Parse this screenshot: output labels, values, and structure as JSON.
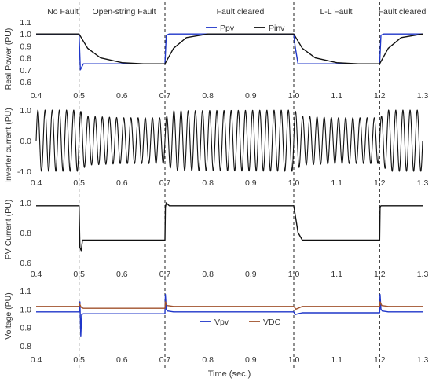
{
  "chart_data": [
    {
      "type": "line",
      "ylabel": "Real Power  (PU)",
      "xlim": [
        0.4,
        1.3
      ],
      "ylim": [
        0.6,
        1.1
      ],
      "xticks": [
        "0.4",
        "0.5",
        "0.6",
        "0.7",
        "0.8",
        "0.9",
        "1.0",
        "1.1",
        "1.2",
        "1.3"
      ],
      "yticks": [
        "0.6",
        "0.7",
        "0.8",
        "0.9",
        "1.0",
        "1.1"
      ],
      "grid": false,
      "legend": "top-right",
      "series": [
        {
          "name": "Ppv",
          "color": "#1f36c9",
          "x": [
            0.4,
            0.5,
            0.503,
            0.51,
            0.7,
            0.703,
            0.71,
            1.0,
            1.003,
            1.01,
            1.2,
            1.203,
            1.21,
            1.3
          ],
          "y": [
            1.0,
            1.0,
            0.7,
            0.75,
            0.75,
            0.99,
            1.0,
            1.0,
            0.9,
            0.75,
            0.75,
            0.99,
            1.0,
            1.0
          ]
        },
        {
          "name": "Pinv",
          "color": "#111111",
          "x": [
            0.4,
            0.5,
            0.52,
            0.55,
            0.6,
            0.65,
            0.7,
            0.72,
            0.75,
            0.8,
            0.85,
            1.0,
            1.02,
            1.05,
            1.1,
            1.15,
            1.2,
            1.22,
            1.25,
            1.3
          ],
          "y": [
            1.0,
            1.0,
            0.88,
            0.8,
            0.76,
            0.75,
            0.75,
            0.88,
            0.97,
            1.0,
            1.0,
            1.0,
            0.88,
            0.8,
            0.76,
            0.75,
            0.75,
            0.88,
            0.97,
            1.0
          ]
        }
      ]
    },
    {
      "type": "line",
      "ylabel": "Inverter current  (PU)",
      "xlim": [
        0.4,
        1.3
      ],
      "ylim": [
        -1.0,
        1.0
      ],
      "xticks": [
        "0.4",
        "0.5",
        "0.6",
        "0.7",
        "0.8",
        "0.9",
        "1.0",
        "1.1",
        "1.2",
        "1.3"
      ],
      "yticks": [
        "-1.0",
        "0.0",
        "1.0"
      ],
      "grid": false,
      "series": [
        {
          "color": "#111111",
          "frequency_hz": 60,
          "amplitude": {
            "x": [
              0.4,
              0.5,
              0.52,
              0.6,
              0.7,
              0.72,
              1.0,
              1.02,
              1.1,
              1.2,
              1.22,
              1.3
            ],
            "y": [
              1.0,
              1.0,
              0.8,
              0.75,
              0.75,
              0.98,
              1.0,
              0.8,
              0.75,
              0.75,
              1.0,
              1.0
            ]
          }
        }
      ]
    },
    {
      "type": "line",
      "ylabel": "PV Current  (PU)",
      "xlim": [
        0.4,
        1.3
      ],
      "ylim": [
        0.6,
        1.0
      ],
      "xticks": [
        "0.4",
        "0.5",
        "0.6",
        "0.7",
        "0.8",
        "0.9",
        "1.0",
        "1.1",
        "1.2",
        "1.3"
      ],
      "yticks": [
        "0.6",
        "0.8",
        "1.0"
      ],
      "grid": false,
      "series": [
        {
          "color": "#111111",
          "x": [
            0.4,
            0.5,
            0.502,
            0.505,
            0.508,
            0.52,
            0.7,
            0.701,
            0.703,
            0.71,
            1.0,
            1.01,
            1.02,
            1.2,
            1.201,
            1.203,
            1.21,
            1.3
          ],
          "y": [
            0.98,
            0.98,
            0.7,
            0.68,
            0.75,
            0.75,
            0.75,
            0.97,
            1.0,
            0.98,
            0.98,
            0.8,
            0.75,
            0.75,
            0.97,
            0.98,
            0.98,
            0.98
          ]
        }
      ]
    },
    {
      "type": "line",
      "ylabel": "Voltage  (PU)",
      "xlabel": "Time (sec.)",
      "xlim": [
        0.4,
        1.3
      ],
      "ylim": [
        0.8,
        1.1
      ],
      "xticks": [
        "0.4",
        "0.5",
        "0.6",
        "0.7",
        "0.8",
        "0.9",
        "1.0",
        "1.1",
        "1.2",
        "1.3"
      ],
      "yticks": [
        "0.8",
        "0.9",
        "1.0",
        "1.1"
      ],
      "grid": false,
      "legend": "bottom-center",
      "series": [
        {
          "name": "Vpv",
          "color": "#1f36c9",
          "x": [
            0.4,
            0.5,
            0.502,
            0.504,
            0.506,
            0.51,
            0.7,
            0.701,
            0.703,
            0.706,
            0.72,
            1.0,
            1.003,
            1.01,
            1.02,
            1.2,
            1.201,
            1.203,
            1.206,
            1.22,
            1.3
          ],
          "y": [
            0.985,
            0.985,
            1.04,
            0.85,
            0.97,
            0.975,
            0.975,
            1.08,
            1.0,
            0.99,
            0.985,
            0.985,
            0.97,
            0.975,
            0.98,
            0.98,
            1.08,
            1.0,
            0.99,
            0.985,
            0.985
          ]
        },
        {
          "name": "VDC",
          "color": "#a0522d",
          "x": [
            0.4,
            0.5,
            0.501,
            0.505,
            0.51,
            0.7,
            0.701,
            0.705,
            0.72,
            1.0,
            1.005,
            1.02,
            1.2,
            1.201,
            1.205,
            1.22,
            1.3
          ],
          "y": [
            1.015,
            1.015,
            1.03,
            1.01,
            1.005,
            1.005,
            1.04,
            1.02,
            1.015,
            1.015,
            1.0,
            1.015,
            1.015,
            1.04,
            1.02,
            1.015,
            1.015
          ]
        }
      ]
    }
  ],
  "phases": [
    "No Fault",
    "Open-string Fault",
    "Fault cleared",
    "L-L Fault",
    "Fault cleared"
  ],
  "phase_boundaries": [
    0.5,
    0.7,
    1.0,
    1.2
  ]
}
